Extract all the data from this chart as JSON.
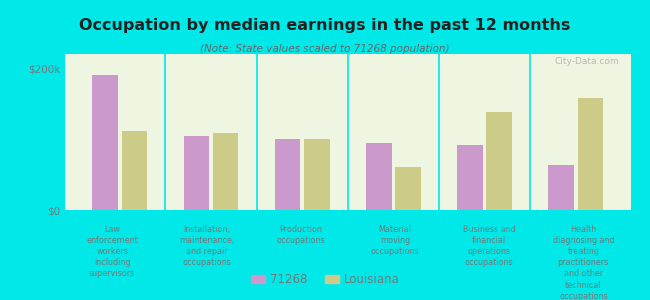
{
  "title": "Occupation by median earnings in the past 12 months",
  "subtitle": "(Note: State values scaled to 71268 population)",
  "categories": [
    "Law\nenforcement\nworkers\nincluding\nsupervisors",
    "Installation,\nmaintenance,\nand repair\noccupations",
    "Production\noccupations",
    "Material\nmoving\noccupations",
    "Business and\nfinancial\noperations\noccupations",
    "Health\ndiagnosing and\ntreating\npractitioners\nand other\ntechnical\noccupations"
  ],
  "values_71268": [
    190000,
    105000,
    100000,
    95000,
    92000,
    63000
  ],
  "values_louisiana": [
    112000,
    108000,
    100000,
    60000,
    138000,
    158000
  ],
  "color_71268": "#cc99cc",
  "color_louisiana": "#cccc88",
  "background_plot": "#eef5e0",
  "background_fig": "#00e8e8",
  "ylabel_ticks": [
    "$0",
    "$200k"
  ],
  "yticks": [
    0,
    200000
  ],
  "legend_labels": [
    "71268",
    "Louisiana"
  ],
  "watermark": "City-Data.com",
  "title_color": "#222222",
  "subtitle_color": "#666666",
  "tick_label_color": "#777777"
}
